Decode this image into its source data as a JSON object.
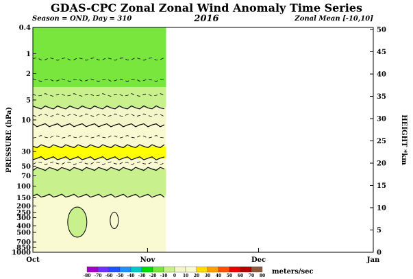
{
  "chart_data": {
    "type": "heatmap",
    "title": "GDAS-CPC Zonal Zonal Wind Anomaly Time Series",
    "subtitle_left": "Season = OND, Day = 310",
    "subtitle_center": "2016",
    "subtitle_right": "Zonal Mean [-10,10]",
    "ylabel_left": "PRESSURE (hPa)",
    "ylabel_right": "HEIGHT *km",
    "pressure_ticks": [
      "0.4",
      "1",
      "2",
      "5",
      "10",
      "30",
      "50",
      "70",
      "100",
      "150",
      "200",
      "250",
      "300",
      "400",
      "500",
      "700",
      "850",
      "1000"
    ],
    "height_ticks": [
      0,
      5,
      10,
      15,
      20,
      25,
      30,
      35,
      40,
      45,
      50
    ],
    "x_ticks": [
      "Oct",
      "Nov",
      "Dec",
      "Jan"
    ],
    "data_end_day": 310,
    "colorbar_levels": [
      -80,
      -70,
      -60,
      -50,
      -40,
      -30,
      -20,
      -10,
      0,
      10,
      20,
      30,
      40,
      50,
      60,
      70,
      80
    ],
    "colorbar_colors": [
      "#a000c8",
      "#6e2fff",
      "#2050ff",
      "#1e90ff",
      "#00c8c8",
      "#00dc00",
      "#78e63c",
      "#c8f08c",
      "#f2f6c8",
      "#fafad2",
      "#ffdc00",
      "#ffa000",
      "#ff5000",
      "#e60000",
      "#b40000",
      "#8c5a3c"
    ],
    "colorbar_unit": "meters/sec",
    "bands": [
      {
        "p_top": 0.4,
        "p_bottom": 3.2,
        "value_range": "10 to 20",
        "color": "#78e63c"
      },
      {
        "p_top": 3.2,
        "p_bottom": 6.5,
        "value_range": "0 to 10",
        "color": "#c8f08c"
      },
      {
        "p_top": 6.5,
        "p_bottom": 12,
        "value_range": "-10 to 0",
        "color": "#f2f6c8"
      },
      {
        "p_top": 12,
        "p_bottom": 25,
        "value_range": "0 to -10",
        "color": "#fafad2"
      },
      {
        "p_top": 25,
        "p_bottom": 38,
        "value_range": "-10 to -20",
        "color": "#ffff00"
      },
      {
        "p_top": 38,
        "p_bottom": 55,
        "value_range": "-10 to 0",
        "color": "#fafad2"
      },
      {
        "p_top": 55,
        "p_bottom": 140,
        "value_range": "0 to 10",
        "color": "#c8f08c"
      },
      {
        "p_top": 140,
        "p_bottom": 1000,
        "value_range": "0 to -10",
        "color": "#fafad2"
      }
    ]
  }
}
